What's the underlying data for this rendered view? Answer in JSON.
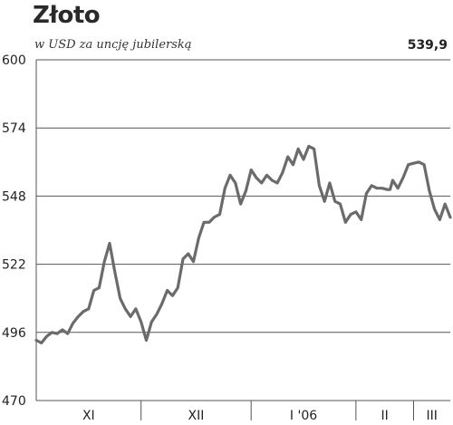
{
  "header": {
    "title": "Złoto",
    "subtitle": "w USD za uncję jubilerską",
    "last_value": "539,9"
  },
  "chart_data": {
    "type": "line",
    "title": "Złoto",
    "subtitle": "w USD za uncję jubilerską",
    "xlabel": "",
    "ylabel": "",
    "ylim": [
      470,
      600
    ],
    "y_ticks": [
      470,
      496,
      522,
      548,
      574,
      600
    ],
    "y_tick_labels": [
      "470",
      "496",
      "522",
      "548",
      "574",
      "600"
    ],
    "grid": "horizontal",
    "x_month_labels": [
      "XI",
      "XII",
      "I '06",
      "II",
      "III"
    ],
    "x_month_spans": [
      [
        0,
        20
      ],
      [
        20,
        41
      ],
      [
        41,
        61
      ],
      [
        61,
        72
      ],
      [
        72,
        79
      ]
    ],
    "x": [
      0,
      1,
      2,
      3,
      4,
      5,
      6,
      7,
      8,
      9,
      10,
      11,
      12,
      13,
      14,
      15,
      16,
      17,
      18,
      19,
      20,
      21,
      22,
      23,
      24,
      25,
      26,
      27,
      28,
      29,
      30,
      31,
      32,
      33,
      34,
      35,
      36,
      37,
      38,
      39,
      40,
      41,
      42,
      43,
      44,
      45,
      46,
      47,
      48,
      49,
      50,
      51,
      52,
      53,
      54,
      55,
      56,
      57,
      58,
      59,
      60,
      61,
      62,
      63,
      64,
      65,
      66,
      67,
      67.5,
      68,
      69,
      70,
      71,
      72,
      73,
      74,
      75,
      76,
      77,
      78,
      79
    ],
    "values": [
      493,
      492,
      494.5,
      496,
      495.5,
      497,
      495.5,
      499.5,
      502,
      504,
      505,
      512,
      513,
      523,
      530,
      519,
      509,
      505,
      502,
      505,
      500,
      493,
      500,
      503,
      507,
      512,
      510,
      513,
      524,
      526,
      523,
      532,
      538,
      538,
      540,
      541,
      551,
      556,
      553,
      545,
      550,
      558,
      555,
      553,
      556,
      554,
      553,
      557,
      563,
      560,
      566,
      562,
      567,
      566,
      552,
      546,
      553,
      546,
      545,
      538,
      541,
      542,
      539,
      549,
      552,
      551,
      551,
      550.5,
      550.5,
      554,
      551,
      555,
      560,
      560.5,
      561,
      560,
      550,
      543,
      539,
      545,
      539.9
    ]
  }
}
